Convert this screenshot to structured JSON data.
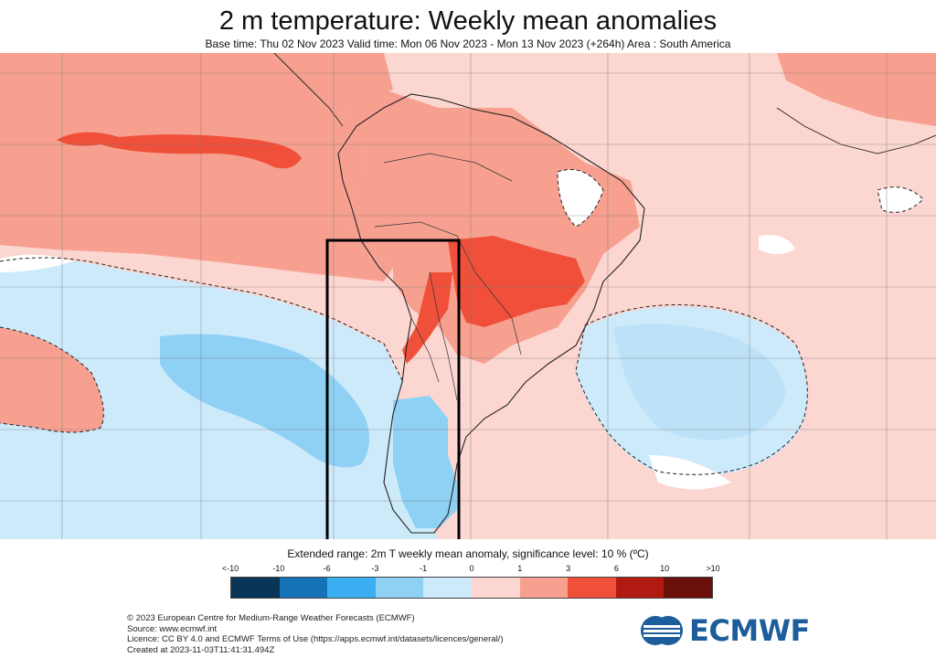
{
  "header": {
    "title": "2 m temperature: Weekly mean anomalies",
    "subtitle": "Base time: Thu 02 Nov 2023 Valid time: Mon 06 Nov 2023 - Mon 13 Nov 2023 (+264h) Area : South America"
  },
  "legend": {
    "title": "Extended range: 2m T weekly mean anomaly, significance level: 10 % (ºC)",
    "ticks": [
      "<-10",
      "-10",
      "-6",
      "-3",
      "-1",
      "0",
      "1",
      "3",
      "6",
      "10",
      ">10"
    ],
    "colors": [
      "#0b3556",
      "#1572b7",
      "#3aaef0",
      "#8fd0f5",
      "#cdeafb",
      "#fcd6d0",
      "#f7a090",
      "#f0503a",
      "#b01a10",
      "#6b0f0a"
    ]
  },
  "footer": {
    "lines": [
      "© 2023 European Centre for Medium-Range Weather Forecasts (ECMWF)",
      "Source: www.ecmwf.int",
      "Licence: CC BY 4.0 and ECMWF Terms of Use (https://apps.ecmwf.int/datasets/licences/general/)",
      "Created at 2023-11-03T11:41:31.494Z"
    ]
  },
  "logo": {
    "text": "ECMWF",
    "color": "#1d5d9b"
  }
}
